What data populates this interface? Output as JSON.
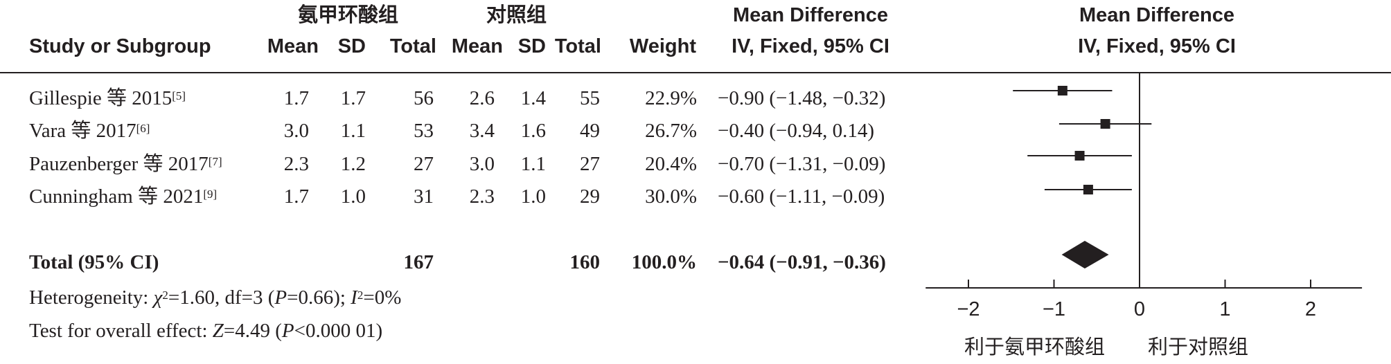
{
  "headers": {
    "group_treat": "氨甲环酸组",
    "group_ctrl": "对照组",
    "md_title": "Mean Difference",
    "md_method": "IV, Fixed, 95% CI",
    "plot_title": "Mean Difference",
    "plot_method": "IV, Fixed, 95% CI",
    "study": "Study or Subgroup",
    "mean": "Mean",
    "sd": "SD",
    "total": "Total",
    "weight": "Weight"
  },
  "studies": [
    {
      "name": "Gillespie 等 2015",
      "ref": "[5]",
      "t_mean": "1.7",
      "t_sd": "1.7",
      "t_total": "56",
      "c_mean": "2.6",
      "c_sd": "1.4",
      "c_total": "55",
      "weight": "22.9%",
      "ci_text": "−0.90 (−1.48, −0.32)"
    },
    {
      "name": "Vara 等 2017",
      "ref": "[6]",
      "t_mean": "3.0",
      "t_sd": "1.1",
      "t_total": "53",
      "c_mean": "3.4",
      "c_sd": "1.6",
      "c_total": "49",
      "weight": "26.7%",
      "ci_text": "−0.40 (−0.94, 0.14)"
    },
    {
      "name": "Pauzenberger 等 2017",
      "ref": "[7]",
      "t_mean": "2.3",
      "t_sd": "1.2",
      "t_total": "27",
      "c_mean": "3.0",
      "c_sd": "1.1",
      "c_total": "27",
      "weight": "20.4%",
      "ci_text": "−0.70 (−1.31, −0.09)"
    },
    {
      "name": "Cunningham 等 2021",
      "ref": "[9]",
      "t_mean": "1.7",
      "t_sd": "1.0",
      "t_total": "31",
      "c_mean": "2.3",
      "c_sd": "1.0",
      "c_total": "29",
      "weight": "30.0%",
      "ci_text": "−0.60 (−1.11, −0.09)"
    }
  ],
  "total": {
    "label": "Total (95% CI)",
    "t_total": "167",
    "c_total": "160",
    "weight": "100.0%",
    "ci_text": "−0.64 (−0.91, −0.36)"
  },
  "heterogeneity": {
    "prefix": "Heterogeneity: ",
    "chi": "χ",
    "chi_sup": "2",
    "mid": "=1.60, df=3 (",
    "p": "P",
    "p_val": "=0.66); ",
    "i": "I",
    "i_sup": "2",
    "end": "=0%"
  },
  "overall": {
    "prefix": "Test for overall effect: ",
    "z": "Z",
    "z_val": "=4.49 (",
    "p": "P",
    "p_val": "<0.000 01)"
  },
  "chart_data": {
    "type": "forest",
    "x_ticks": [
      -2,
      -1,
      0,
      1,
      2
    ],
    "x_tick_labels": [
      "−2",
      "−1",
      "0",
      "1",
      "2"
    ],
    "xlim": [
      -2.5,
      2.6
    ],
    "reference_line": 0,
    "favours_left": "利于氨甲环酸组",
    "favours_right": "利于对照组",
    "studies": [
      {
        "md": -0.9,
        "lo": -1.48,
        "hi": -0.32
      },
      {
        "md": -0.4,
        "lo": -0.94,
        "hi": 0.14
      },
      {
        "md": -0.7,
        "lo": -1.31,
        "hi": -0.09
      },
      {
        "md": -0.6,
        "lo": -1.11,
        "hi": -0.09
      }
    ],
    "pooled": {
      "md": -0.64,
      "lo": -0.91,
      "hi": -0.36
    }
  }
}
